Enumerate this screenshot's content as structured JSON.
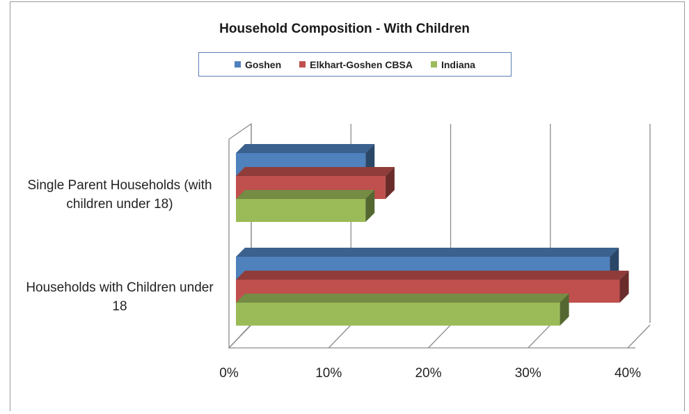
{
  "chart_data": {
    "type": "bar",
    "orientation": "horizontal",
    "title": "Household Composition - With Children",
    "categories": [
      "Single Parent Households (with children under 18)",
      "Households with Children under 18"
    ],
    "series": [
      {
        "name": "Goshen",
        "color": "#4f81bd",
        "values": [
          13,
          37.5
        ]
      },
      {
        "name": "Elkhart-Goshen CBSA",
        "color": "#c0504d",
        "values": [
          15,
          38.5
        ]
      },
      {
        "name": "Indiana",
        "color": "#9bbb59",
        "values": [
          13,
          32.5
        ]
      }
    ],
    "xlim": [
      0,
      40
    ],
    "xticks": [
      "0%",
      "10%",
      "20%",
      "30%",
      "40%"
    ],
    "grid": true,
    "legend_placement": "top"
  }
}
